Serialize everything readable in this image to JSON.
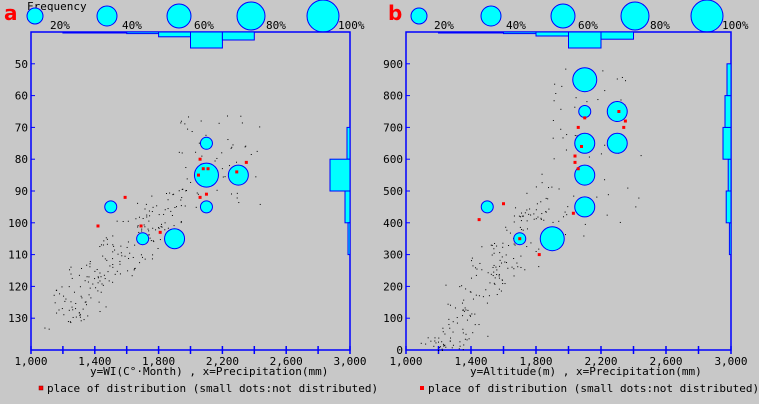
{
  "legend_frequency": {
    "title": "Frequency",
    "labels": [
      "20%",
      "40%",
      "60%",
      "80%",
      "100%"
    ],
    "values": [
      0.2,
      0.4,
      0.6,
      0.8,
      1.0
    ]
  },
  "colors": {
    "frame": "#0000ff",
    "bubble": "#00ffff",
    "red": "#ff0000",
    "dot": "#000000",
    "bg": "#c8c8c8"
  },
  "chart_data": [
    {
      "type": "scatter",
      "panel": "a",
      "xlabel": "y=WI(C°·Month) , x=Precipitation(mm)",
      "legend": "place of distribution (small dots:not distributed)",
      "xlim": [
        1000,
        3000
      ],
      "ylim": [
        140,
        40
      ],
      "y_reversed": true,
      "xticks": [
        1000,
        1200,
        1400,
        1600,
        1800,
        2000,
        2200,
        2400,
        2600,
        2800,
        3000
      ],
      "xtick_labels": [
        "1,000",
        "1,400",
        "1,800",
        "2,200",
        "2,600",
        "3,000"
      ],
      "xtick_label_values": [
        1000,
        1400,
        1800,
        2200,
        2600,
        3000
      ],
      "yticks": [
        "50",
        "60",
        "70",
        "80",
        "90",
        "100",
        "110",
        "120",
        "130"
      ],
      "ytick_values": [
        50,
        60,
        70,
        80,
        90,
        100,
        110,
        120,
        130
      ],
      "bubbles": [
        {
          "x": 1500,
          "y": 95,
          "freq": 0.2
        },
        {
          "x": 1700,
          "y": 105,
          "freq": 0.2
        },
        {
          "x": 1900,
          "y": 105,
          "freq": 0.4
        },
        {
          "x": 2100,
          "y": 75,
          "freq": 0.2
        },
        {
          "x": 2100,
          "y": 85,
          "freq": 0.6
        },
        {
          "x": 2100,
          "y": 95,
          "freq": 0.2
        },
        {
          "x": 2300,
          "y": 85,
          "freq": 0.4
        }
      ],
      "red_points": [
        [
          1420,
          101
        ],
        [
          1590,
          92
        ],
        [
          1690,
          101
        ],
        [
          1810,
          103
        ],
        [
          2050,
          85
        ],
        [
          2060,
          80
        ],
        [
          2080,
          83
        ],
        [
          2110,
          83
        ],
        [
          2100,
          91
        ],
        [
          2060,
          92
        ],
        [
          2290,
          84
        ],
        [
          2350,
          81
        ]
      ],
      "top_hist": {
        "bins": [
          1200,
          1400,
          1600,
          1800,
          2000,
          2200,
          2400
        ],
        "values": [
          0.02,
          0.05,
          0.1,
          0.3,
          1.0,
          0.5
        ]
      },
      "right_hist": {
        "bins": [
          70,
          80,
          90,
          100,
          110
        ],
        "values": [
          0.15,
          1.0,
          0.25,
          0.1
        ]
      }
    },
    {
      "type": "scatter",
      "panel": "b",
      "xlabel": "y=Altitude(m) , x=Precipitation(mm)",
      "legend": "place of distribution (small dots:not distributed)",
      "xlim": [
        1000,
        3000
      ],
      "ylim": [
        0,
        1000
      ],
      "xticks": [
        1000,
        1200,
        1400,
        1600,
        1800,
        2000,
        2200,
        2400,
        2600,
        2800,
        3000
      ],
      "xtick_labels": [
        "1,000",
        "1,400",
        "1,800",
        "2,200",
        "2,600",
        "3,000"
      ],
      "xtick_label_values": [
        1000,
        1400,
        1800,
        2200,
        2600,
        3000
      ],
      "yticks": [
        "0",
        "100",
        "200",
        "300",
        "400",
        "500",
        "600",
        "700",
        "800",
        "900"
      ],
      "ytick_values": [
        0,
        100,
        200,
        300,
        400,
        500,
        600,
        700,
        800,
        900
      ],
      "bubbles": [
        {
          "x": 1500,
          "y": 450,
          "freq": 0.2
        },
        {
          "x": 1700,
          "y": 350,
          "freq": 0.2
        },
        {
          "x": 1900,
          "y": 350,
          "freq": 0.6
        },
        {
          "x": 2100,
          "y": 850,
          "freq": 0.6
        },
        {
          "x": 2100,
          "y": 750,
          "freq": 0.2
        },
        {
          "x": 2100,
          "y": 650,
          "freq": 0.4
        },
        {
          "x": 2100,
          "y": 550,
          "freq": 0.4
        },
        {
          "x": 2100,
          "y": 450,
          "freq": 0.4
        },
        {
          "x": 2300,
          "y": 750,
          "freq": 0.4
        },
        {
          "x": 2300,
          "y": 650,
          "freq": 0.4
        }
      ],
      "red_points": [
        [
          1450,
          410
        ],
        [
          1600,
          460
        ],
        [
          1700,
          350
        ],
        [
          1820,
          300
        ],
        [
          2030,
          430
        ],
        [
          2040,
          610
        ],
        [
          2040,
          590
        ],
        [
          2060,
          700
        ],
        [
          2060,
          570
        ],
        [
          2080,
          640
        ],
        [
          2100,
          730
        ],
        [
          2310,
          750
        ],
        [
          2340,
          700
        ],
        [
          2350,
          720
        ]
      ],
      "top_hist": {
        "bins": [
          1200,
          1400,
          1600,
          1800,
          2000,
          2200,
          2400
        ],
        "values": [
          0.02,
          0.05,
          0.1,
          0.25,
          1.0,
          0.45
        ]
      },
      "right_hist": {
        "bins": [
          300,
          400,
          500,
          600,
          700,
          800,
          900
        ],
        "values": [
          0.2,
          0.6,
          0.35,
          1.0,
          0.75,
          0.5
        ]
      }
    }
  ]
}
